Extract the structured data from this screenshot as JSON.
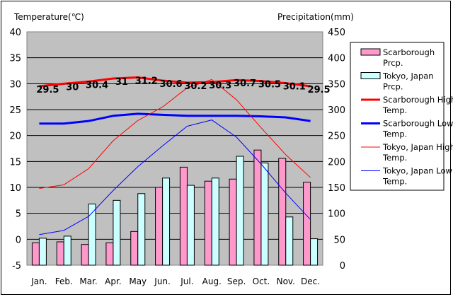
{
  "chart_data": {
    "type": "bar",
    "y_left_label": "Temperature(℃)",
    "y_right_label": "Precipitation(mm)",
    "categories": [
      "Jan.",
      "Feb.",
      "Mar.",
      "Apr.",
      "May",
      "Jun.",
      "Jul.",
      "Aug.",
      "Sep.",
      "Oct.",
      "Nov.",
      "Dec."
    ],
    "y_left_lim": [
      -5,
      40
    ],
    "y_left_ticks": [
      -5,
      0,
      5,
      10,
      15,
      20,
      25,
      30,
      35,
      40
    ],
    "y_right_lim": [
      0,
      450
    ],
    "y_right_ticks": [
      0,
      50,
      100,
      150,
      200,
      250,
      300,
      350,
      400,
      450
    ],
    "grid": true,
    "legend_position": "right",
    "bar_series": [
      {
        "name": "Scarborough Prcp.",
        "color": "#ff99cc",
        "values": [
          43,
          45,
          40,
          43,
          65,
          150,
          189,
          162,
          166,
          222,
          206,
          160
        ]
      },
      {
        "name": "Tokyo, Japan Prcp.",
        "color": "#ccffff",
        "values": [
          52,
          56,
          118,
          125,
          138,
          168,
          154,
          168,
          210,
          197,
          93,
          51
        ]
      }
    ],
    "line_series": [
      {
        "name": "Scarborough High Temp.",
        "color": "#ff0000",
        "width": 3,
        "values": [
          29.5,
          30.0,
          30.4,
          31.0,
          31.2,
          30.6,
          30.2,
          30.3,
          30.7,
          30.5,
          30.1,
          29.5
        ]
      },
      {
        "name": "Scarborough Low Temp.",
        "color": "#0000ff",
        "width": 3,
        "values": [
          22.3,
          22.3,
          22.8,
          23.8,
          24.2,
          24.0,
          23.8,
          23.8,
          23.8,
          23.7,
          23.5,
          22.8
        ]
      },
      {
        "name": "Tokyo, Japan High Temp.",
        "color": "#ff0000",
        "width": 1,
        "values": [
          9.8,
          10.5,
          13.6,
          19.0,
          22.9,
          25.5,
          29.2,
          30.8,
          26.9,
          21.5,
          16.3,
          11.9
        ]
      },
      {
        "name": "Tokyo, Japan Low Temp.",
        "color": "#0000ff",
        "width": 1,
        "values": [
          0.9,
          1.7,
          4.4,
          9.4,
          14.0,
          18.0,
          21.8,
          23.0,
          19.7,
          14.5,
          8.9,
          3.8
        ]
      }
    ],
    "data_labels": [
      "29.5",
      "30",
      "30.4",
      "31",
      "31.2",
      "30.6",
      "30.2",
      "30.3",
      "30.7",
      "30.5",
      "30.1",
      "29.5"
    ]
  }
}
